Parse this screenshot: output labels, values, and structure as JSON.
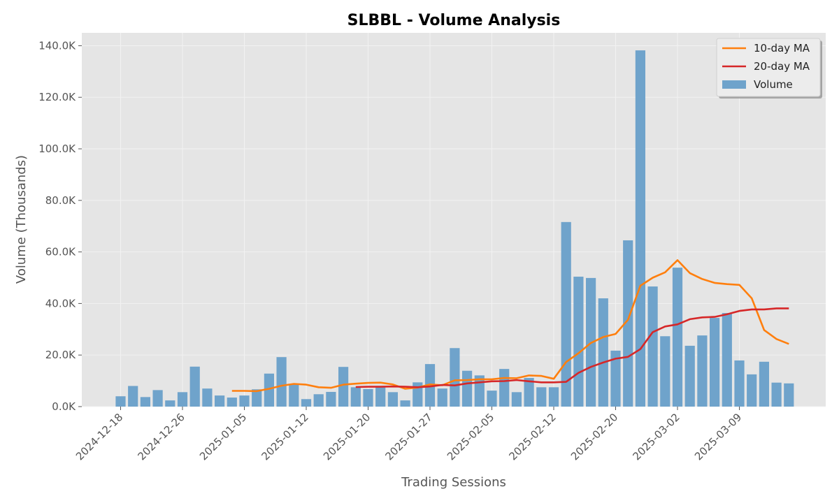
{
  "chart_data": {
    "type": "bar",
    "title": "SLBBL - Volume Analysis",
    "xlabel": "Trading Sessions",
    "ylabel": "Volume (Thousands)",
    "ylim": [
      0,
      145000
    ],
    "yticks": [
      0,
      20000,
      40000,
      60000,
      80000,
      100000,
      120000,
      140000
    ],
    "ytick_labels": [
      "0.0K",
      "20.0K",
      "40.0K",
      "60.0K",
      "80.0K",
      "100.0K",
      "120.0K",
      "140.0K"
    ],
    "xtick_labels": [
      "2024-12-18",
      "2024-12-26",
      "2025-01-05",
      "2025-01-12",
      "2025-01-20",
      "2025-01-27",
      "2025-02-05",
      "2025-02-12",
      "2025-02-20",
      "2025-03-02",
      "2025-03-09"
    ],
    "xtick_sessions": [
      0,
      5,
      10,
      15,
      20,
      25,
      30,
      35,
      40,
      45,
      50
    ],
    "grid": true,
    "legend_position": "top-right",
    "colors": {
      "volume": "#6fa3cb",
      "ma10": "#ff7f0e",
      "ma20": "#d62728",
      "plot_bg": "#e5e5e5",
      "grid": "#f2f2f2"
    },
    "legend": [
      {
        "label": "10-day MA",
        "kind": "line",
        "color": "#ff7f0e"
      },
      {
        "label": "20-day MA",
        "kind": "line",
        "color": "#d62728"
      },
      {
        "label": "Volume",
        "kind": "bar",
        "color": "#6fa3cb"
      }
    ],
    "series": [
      {
        "name": "Volume",
        "kind": "bar",
        "values": [
          4000,
          8000,
          3700,
          6400,
          2400,
          5600,
          15500,
          7000,
          4300,
          3500,
          4300,
          6700,
          12800,
          19200,
          8800,
          2900,
          4800,
          5700,
          15400,
          7500,
          6800,
          8000,
          5600,
          2400,
          9400,
          16500,
          7000,
          22700,
          13900,
          12100,
          6200,
          14600,
          5600,
          11100,
          7500,
          7500,
          71600,
          50400,
          49900,
          42000,
          21700,
          64500,
          138200,
          46600,
          27300,
          53900,
          23600,
          27600,
          34400,
          36300,
          17900,
          12500,
          17400,
          9300,
          9000
        ]
      },
      {
        "name": "10-day MA",
        "kind": "line",
        "values": [
          null,
          null,
          null,
          null,
          null,
          null,
          null,
          null,
          null,
          6100,
          6100,
          6000,
          6900,
          8100,
          8800,
          8500,
          7500,
          7300,
          8500,
          8900,
          9200,
          9300,
          8600,
          6900,
          7400,
          8600,
          8300,
          10200,
          10300,
          10600,
          10600,
          11100,
          11000,
          12100,
          11900,
          10800,
          17300,
          20700,
          24700,
          27000,
          28200,
          33700,
          46900,
          50000,
          52100,
          56800,
          51800,
          49500,
          48000,
          47500,
          47200,
          42000,
          29700,
          26200,
          24300
        ]
      },
      {
        "name": "20-day MA",
        "kind": "line",
        "values": [
          null,
          null,
          null,
          null,
          null,
          null,
          null,
          null,
          null,
          null,
          null,
          null,
          null,
          null,
          null,
          null,
          null,
          null,
          null,
          7600,
          7700,
          7700,
          7800,
          7700,
          7500,
          7800,
          8400,
          8200,
          9000,
          9400,
          9800,
          9900,
          10300,
          9800,
          9400,
          9400,
          9600,
          13100,
          15400,
          17100,
          18600,
          19300,
          22300,
          28900,
          31100,
          31900,
          33900,
          34600,
          34800,
          35800,
          37100,
          37700,
          37700,
          38100,
          38100
        ]
      }
    ]
  }
}
